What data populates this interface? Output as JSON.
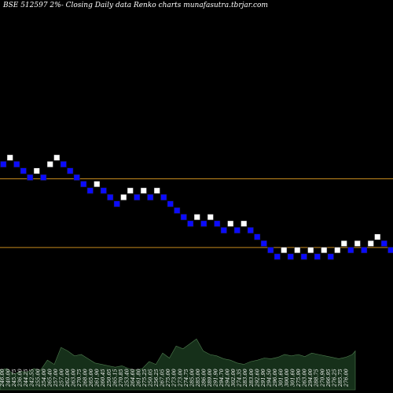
{
  "header": {
    "title": "BSE 512597 2%-  Closing Daily data  Renko  charts munafasutra.tbrjar.com"
  },
  "colors": {
    "background": "#000000",
    "brick_up": "#ffffff",
    "brick_down": "#0b0bff",
    "brick_border": "#1a1a1a",
    "level_line": "#c68a1e",
    "volume_fill": "#16301a",
    "volume_stroke": "#4f7d4f",
    "text": "#ffffff"
  },
  "chart_data": {
    "type": "renko",
    "brick_size_pct": 2,
    "bricks": [
      {
        "row": 7,
        "dir": "down"
      },
      {
        "row": 6,
        "dir": "up"
      },
      {
        "row": 7,
        "dir": "down"
      },
      {
        "row": 8,
        "dir": "down"
      },
      {
        "row": 9,
        "dir": "down"
      },
      {
        "row": 8,
        "dir": "up"
      },
      {
        "row": 9,
        "dir": "down"
      },
      {
        "row": 7,
        "dir": "up"
      },
      {
        "row": 6,
        "dir": "up"
      },
      {
        "row": 7,
        "dir": "down"
      },
      {
        "row": 8,
        "dir": "down"
      },
      {
        "row": 9,
        "dir": "down"
      },
      {
        "row": 10,
        "dir": "down"
      },
      {
        "row": 11,
        "dir": "down"
      },
      {
        "row": 10,
        "dir": "up"
      },
      {
        "row": 11,
        "dir": "down"
      },
      {
        "row": 12,
        "dir": "down"
      },
      {
        "row": 13,
        "dir": "down"
      },
      {
        "row": 12,
        "dir": "up"
      },
      {
        "row": 11,
        "dir": "up"
      },
      {
        "row": 12,
        "dir": "down"
      },
      {
        "row": 11,
        "dir": "up"
      },
      {
        "row": 12,
        "dir": "down"
      },
      {
        "row": 11,
        "dir": "up"
      },
      {
        "row": 12,
        "dir": "down"
      },
      {
        "row": 13,
        "dir": "down"
      },
      {
        "row": 14,
        "dir": "down"
      },
      {
        "row": 15,
        "dir": "down"
      },
      {
        "row": 16,
        "dir": "down"
      },
      {
        "row": 15,
        "dir": "up"
      },
      {
        "row": 16,
        "dir": "down"
      },
      {
        "row": 15,
        "dir": "up"
      },
      {
        "row": 16,
        "dir": "down"
      },
      {
        "row": 17,
        "dir": "down"
      },
      {
        "row": 16,
        "dir": "up"
      },
      {
        "row": 17,
        "dir": "down"
      },
      {
        "row": 16,
        "dir": "up"
      },
      {
        "row": 17,
        "dir": "down"
      },
      {
        "row": 18,
        "dir": "down"
      },
      {
        "row": 19,
        "dir": "down"
      },
      {
        "row": 20,
        "dir": "down"
      },
      {
        "row": 21,
        "dir": "down"
      },
      {
        "row": 20,
        "dir": "up"
      },
      {
        "row": 21,
        "dir": "down"
      },
      {
        "row": 20,
        "dir": "up"
      },
      {
        "row": 21,
        "dir": "down"
      },
      {
        "row": 20,
        "dir": "up"
      },
      {
        "row": 21,
        "dir": "down"
      },
      {
        "row": 20,
        "dir": "up"
      },
      {
        "row": 21,
        "dir": "down"
      },
      {
        "row": 20,
        "dir": "up"
      },
      {
        "row": 19,
        "dir": "up"
      },
      {
        "row": 20,
        "dir": "down"
      },
      {
        "row": 19,
        "dir": "up"
      },
      {
        "row": 20,
        "dir": "down"
      },
      {
        "row": 19,
        "dir": "up"
      },
      {
        "row": 18,
        "dir": "up"
      },
      {
        "row": 19,
        "dir": "down"
      },
      {
        "row": 20,
        "dir": "down"
      }
    ],
    "price_levels": [
      {
        "name": "upper-level",
        "row": 9.2
      },
      {
        "name": "lower-level",
        "row": 19.6
      }
    ],
    "volume_labels": [
      "246.00",
      "240.00",
      "245.75",
      "236.00",
      "244.25",
      "242.55",
      "255.00",
      "254.00",
      "265.40",
      "257.00",
      "257.00",
      "262.00",
      "263.00",
      "270.75",
      "268.00",
      "265.00",
      "261.90",
      "260.45",
      "250.05",
      "265.15",
      "270.85",
      "253.40",
      "264.60",
      "261.80",
      "275.25",
      "250.05",
      "256.25",
      "267.05",
      "275.00",
      "273.00",
      "273.00",
      "274.75",
      "285.00",
      "285.00",
      "286.00",
      "289.00",
      "291.90",
      "294.70",
      "294.00",
      "302.00",
      "274.35",
      "283.00",
      "283.00",
      "292.60",
      "291.90",
      "294.50",
      "296.00",
      "301.60",
      "300.00",
      "301.60",
      "275.90",
      "263.00",
      "294.00",
      "288.75",
      "270.90",
      "266.95",
      "276.25",
      "285.75",
      "276.00"
    ],
    "volumes": [
      0.28,
      0.3,
      0.22,
      0.26,
      0.25,
      0.3,
      0.28,
      0.42,
      0.36,
      0.6,
      0.55,
      0.48,
      0.5,
      0.44,
      0.38,
      0.36,
      0.34,
      0.32,
      0.34,
      0.3,
      0.28,
      0.3,
      0.4,
      0.36,
      0.52,
      0.45,
      0.62,
      0.58,
      0.65,
      0.72,
      0.55,
      0.5,
      0.48,
      0.44,
      0.42,
      0.38,
      0.36,
      0.4,
      0.42,
      0.45,
      0.44,
      0.46,
      0.5,
      0.48,
      0.5,
      0.47,
      0.52,
      0.5,
      0.48,
      0.46,
      0.44,
      0.46,
      0.5,
      0.55,
      0.48,
      0.45,
      0.5,
      0.46,
      0.42
    ],
    "xlabel": "",
    "ylabel": ""
  }
}
